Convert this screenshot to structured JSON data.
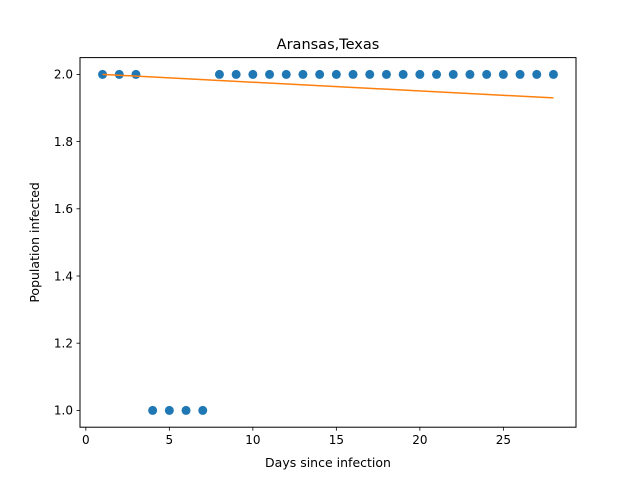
{
  "chart_data": {
    "type": "scatter",
    "title": "Aransas,Texas",
    "xlabel": "Days since infection",
    "ylabel": "Population infected",
    "xlim": [
      -0.35,
      29.35
    ],
    "ylim": [
      0.95,
      2.05
    ],
    "xticks": [
      0,
      5,
      10,
      15,
      20,
      25
    ],
    "yticks": [
      1.0,
      1.2,
      1.4,
      1.6,
      1.8,
      2.0
    ],
    "xtick_labels": [
      "0",
      "5",
      "10",
      "15",
      "20",
      "25"
    ],
    "ytick_labels": [
      "1.0",
      "1.2",
      "1.4",
      "1.6",
      "1.8",
      "2.0"
    ],
    "grid": false,
    "series": [
      {
        "type": "scatter",
        "color": "#1f77b4",
        "x": [
          1,
          2,
          3,
          4,
          5,
          6,
          7,
          8,
          9,
          10,
          11,
          12,
          13,
          14,
          15,
          16,
          17,
          18,
          19,
          20,
          21,
          22,
          23,
          24,
          25,
          26,
          27,
          28
        ],
        "y": [
          2,
          2,
          2,
          1,
          1,
          1,
          1,
          2,
          2,
          2,
          2,
          2,
          2,
          2,
          2,
          2,
          2,
          2,
          2,
          2,
          2,
          2,
          2,
          2,
          2,
          2,
          2,
          2
        ]
      },
      {
        "type": "line",
        "color": "#ff7f0e",
        "x": [
          1,
          28
        ],
        "y": [
          2.0,
          1.93
        ]
      }
    ]
  }
}
